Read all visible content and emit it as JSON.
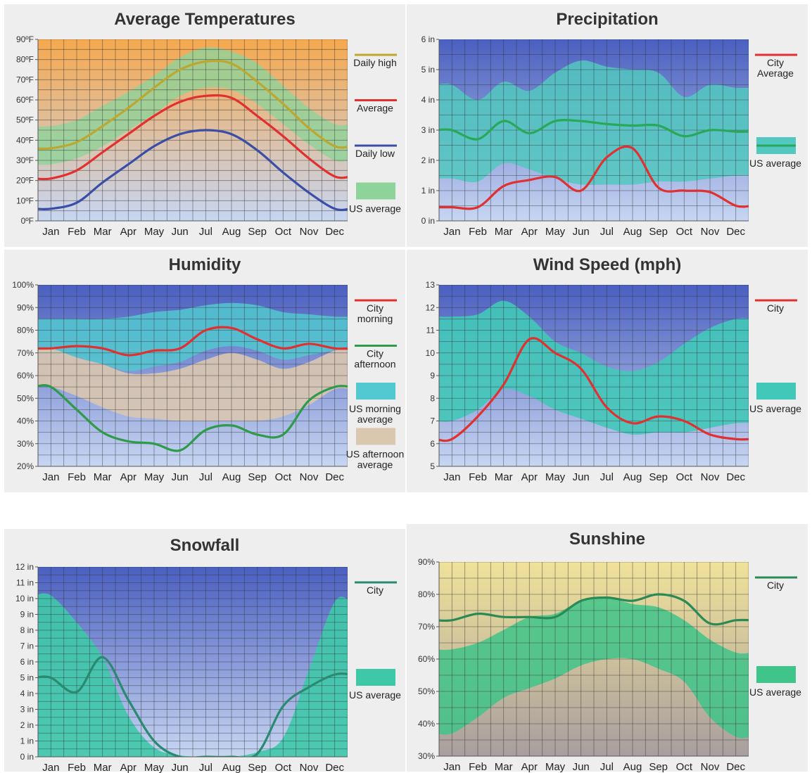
{
  "chart_data": [
    {
      "id": "temps",
      "type": "line",
      "title": "Average Temperatures",
      "categories": [
        "Jan",
        "Feb",
        "Mar",
        "Apr",
        "May",
        "Jun",
        "Jul",
        "Aug",
        "Sep",
        "Oct",
        "Nov",
        "Dec"
      ],
      "y_ticks": [
        "0ºF",
        "10ºF",
        "20ºF",
        "30ºF",
        "40ºF",
        "50ºF",
        "60ºF",
        "70ºF",
        "80ºF",
        "90ºF"
      ],
      "ylim": [
        0,
        90
      ],
      "background": {
        "top": "#f6a94e",
        "bottom": "#c7d6f2"
      },
      "bands": [
        {
          "name": "US average",
          "color": "#8ed39a",
          "opacity": 0.8,
          "upper": [
            47,
            50,
            57,
            64,
            72,
            81,
            86,
            84,
            78,
            67,
            56,
            48
          ],
          "lower": [
            28,
            31,
            37,
            45,
            53,
            62,
            66,
            65,
            58,
            48,
            38,
            30
          ]
        }
      ],
      "series": [
        {
          "name": "Daily high",
          "color": "#bda730",
          "values": [
            36,
            39,
            47,
            56,
            66,
            75,
            79,
            78,
            69,
            58,
            46,
            37
          ]
        },
        {
          "name": "Average",
          "color": "#e03030",
          "values": [
            21,
            25,
            34,
            43,
            52,
            59,
            62,
            61,
            52,
            42,
            31,
            22
          ]
        },
        {
          "name": "Daily low",
          "color": "#3a4ea8",
          "values": [
            6,
            9,
            19,
            28,
            37,
            43,
            45,
            43,
            35,
            24,
            14,
            6
          ]
        }
      ]
    },
    {
      "id": "precip",
      "type": "line",
      "title": "Precipitation",
      "categories": [
        "Jan",
        "Feb",
        "Mar",
        "Apr",
        "May",
        "Jun",
        "Jul",
        "Aug",
        "Sep",
        "Oct",
        "Nov",
        "Dec"
      ],
      "y_ticks": [
        "0 in",
        "1 in",
        "2 in",
        "3 in",
        "4 in",
        "5 in",
        "6 in"
      ],
      "ylim": [
        0,
        6
      ],
      "background": {
        "top": "#4a5fc0",
        "bottom": "#c7d6f2"
      },
      "bands": [
        {
          "name": "US average",
          "color": "#52c8c0",
          "opacity": 0.85,
          "upper": [
            4.5,
            4.0,
            4.6,
            4.3,
            4.9,
            5.3,
            5.1,
            5.0,
            4.9,
            4.1,
            4.5,
            4.4
          ],
          "lower": [
            1.4,
            1.3,
            1.9,
            1.7,
            1.4,
            1.2,
            1.2,
            1.2,
            1.3,
            1.3,
            1.4,
            1.5
          ]
        }
      ],
      "series": [
        {
          "name": "City Average",
          "color": "#e03030",
          "values": [
            0.45,
            0.45,
            1.15,
            1.35,
            1.45,
            1.0,
            2.1,
            2.4,
            1.1,
            1.0,
            0.95,
            0.5
          ]
        },
        {
          "name": "US average",
          "color": "#2aa85a",
          "values": [
            3.0,
            2.7,
            3.3,
            2.9,
            3.3,
            3.3,
            3.2,
            3.15,
            3.15,
            2.8,
            3.0,
            2.95
          ]
        }
      ]
    },
    {
      "id": "humidity",
      "type": "line",
      "title": "Humidity",
      "categories": [
        "Jan",
        "Feb",
        "Mar",
        "Apr",
        "May",
        "Jun",
        "Jul",
        "Aug",
        "Sep",
        "Oct",
        "Nov",
        "Dec"
      ],
      "y_ticks": [
        "20%",
        "30%",
        "40%",
        "50%",
        "60%",
        "70%",
        "80%",
        "90%",
        "100%"
      ],
      "ylim": [
        20,
        100
      ],
      "background": {
        "top": "#4a5fc0",
        "bottom": "#c7d6f2"
      },
      "bands": [
        {
          "name": "US morning average",
          "color": "#52c8d0",
          "opacity": 0.85,
          "upper": [
            85,
            85,
            85,
            86,
            88,
            89,
            91,
            92,
            91,
            88,
            87,
            86
          ],
          "lower": [
            70,
            68,
            65,
            62,
            64,
            66,
            71,
            73,
            71,
            67,
            69,
            71
          ]
        },
        {
          "name": "US afternoon average",
          "color": "#d9c7b0",
          "opacity": 0.9,
          "upper": [
            72,
            68,
            65,
            61,
            61,
            63,
            67,
            70,
            67,
            63,
            66,
            71
          ],
          "lower": [
            55,
            51,
            46,
            42,
            41,
            40,
            40,
            40,
            40,
            42,
            47,
            54
          ]
        }
      ],
      "series": [
        {
          "name": "City morning",
          "color": "#e03030",
          "values": [
            72,
            73,
            72,
            69,
            71,
            72,
            80,
            81,
            76,
            72,
            74,
            72
          ]
        },
        {
          "name": "City afternoon",
          "color": "#2e9a4a",
          "values": [
            55,
            45,
            35,
            31,
            30,
            27,
            36,
            38,
            34,
            34,
            49,
            55
          ]
        }
      ]
    },
    {
      "id": "wind",
      "type": "line",
      "title": "Wind Speed (mph)",
      "categories": [
        "Jan",
        "Feb",
        "Mar",
        "Apr",
        "May",
        "Jun",
        "Jul",
        "Aug",
        "Sep",
        "Oct",
        "Nov",
        "Dec"
      ],
      "y_ticks": [
        "5",
        "6",
        "7",
        "8",
        "9",
        "10",
        "11",
        "12",
        "13"
      ],
      "ylim": [
        5,
        13
      ],
      "background": {
        "top": "#4a5fc0",
        "bottom": "#c7d6f2"
      },
      "bands": [
        {
          "name": "US average",
          "color": "#42c8b8",
          "opacity": 0.9,
          "upper": [
            11.6,
            11.7,
            12.3,
            11.6,
            10.5,
            10.0,
            9.4,
            9.2,
            9.6,
            10.4,
            11.1,
            11.5
          ],
          "lower": [
            7.0,
            7.5,
            8.4,
            8.1,
            7.5,
            7.1,
            6.7,
            6.4,
            6.5,
            6.5,
            6.7,
            6.9
          ]
        }
      ],
      "series": [
        {
          "name": "City",
          "color": "#e03030",
          "values": [
            6.2,
            7.2,
            8.6,
            10.6,
            10.0,
            9.3,
            7.6,
            6.9,
            7.2,
            7.0,
            6.4,
            6.2
          ]
        }
      ]
    },
    {
      "id": "snow",
      "type": "line",
      "title": "Snowfall",
      "categories": [
        "Jan",
        "Feb",
        "Mar",
        "Apr",
        "May",
        "Jun",
        "Jul",
        "Aug",
        "Sep",
        "Oct",
        "Nov",
        "Dec"
      ],
      "y_ticks": [
        "0 in",
        "1 in",
        "2 in",
        "3 in",
        "4 in",
        "5 in",
        "6 in",
        "7 in",
        "8 in",
        "9 in",
        "10 in",
        "11 in",
        "12 in"
      ],
      "ylim": [
        0,
        12
      ],
      "background": {
        "top": "#4a5fc0",
        "bottom": "#c7d6f2"
      },
      "bands": [
        {
          "name": "US average",
          "color": "#3ec8a8",
          "opacity": 0.9,
          "upper": [
            10.2,
            8.5,
            6.3,
            2.6,
            0.6,
            0.1,
            0,
            0,
            0.3,
            1.2,
            5.5,
            9.8
          ],
          "lower": [
            0,
            0,
            0,
            0,
            0,
            0,
            0,
            0,
            0,
            0,
            0,
            0
          ]
        }
      ],
      "series": [
        {
          "name": "City",
          "color": "#2a8a70",
          "values": [
            5.0,
            4.1,
            6.3,
            3.6,
            1.0,
            0,
            0,
            0,
            0.2,
            3.2,
            4.4,
            5.2
          ]
        }
      ]
    },
    {
      "id": "sun",
      "type": "line",
      "title": "Sunshine",
      "categories": [
        "Jan",
        "Feb",
        "Mar",
        "Apr",
        "May",
        "Jun",
        "Jul",
        "Aug",
        "Sep",
        "Oct",
        "Nov",
        "Dec"
      ],
      "y_ticks": [
        "30%",
        "40%",
        "50%",
        "60%",
        "70%",
        "80%",
        "90%"
      ],
      "ylim": [
        30,
        90
      ],
      "background": {
        "top": "#f0e29a",
        "bottom": "#a89e9e"
      },
      "bands": [
        {
          "name": "US average",
          "color": "#3fc48a",
          "opacity": 0.85,
          "upper": [
            63,
            65,
            69,
            73,
            74,
            78,
            79,
            77,
            76,
            72,
            66,
            62
          ],
          "lower": [
            37,
            42,
            48,
            51,
            54,
            58,
            60,
            60,
            57,
            53,
            42,
            36
          ]
        }
      ],
      "series": [
        {
          "name": "City",
          "color": "#2a8a55",
          "values": [
            72,
            74,
            73,
            73,
            73,
            78,
            79,
            78,
            80,
            78,
            71,
            72
          ]
        }
      ]
    }
  ],
  "legends": [
    {
      "chart": "temps",
      "items": [
        {
          "type": "line",
          "color": "#bda730",
          "lines": [
            "Daily high"
          ]
        },
        {
          "type": "line",
          "color": "#e03030",
          "lines": [
            "Average"
          ]
        },
        {
          "type": "line",
          "color": "#3a4ea8",
          "lines": [
            "Daily low"
          ]
        },
        {
          "type": "box",
          "color": "#8ed39a",
          "lines": [
            "US average"
          ]
        }
      ]
    },
    {
      "chart": "precip",
      "items": [
        {
          "type": "line",
          "color": "#e03030",
          "lines": [
            "City",
            "Average"
          ]
        },
        {
          "type": "box",
          "color": "#52c8c0",
          "line_color": "#2aa85a",
          "lines": [
            "US average"
          ]
        }
      ]
    },
    {
      "chart": "humidity",
      "items": [
        {
          "type": "line",
          "color": "#e03030",
          "lines": [
            "City",
            "morning"
          ]
        },
        {
          "type": "line",
          "color": "#2e9a4a",
          "lines": [
            "City",
            "afternoon"
          ]
        },
        {
          "type": "box",
          "color": "#52c8d0",
          "lines": [
            "US morning",
            "average"
          ]
        },
        {
          "type": "box",
          "color": "#d9c7b0",
          "lines": [
            "US afternoon",
            "average"
          ]
        }
      ]
    },
    {
      "chart": "wind",
      "items": [
        {
          "type": "line",
          "color": "#e03030",
          "lines": [
            "City"
          ]
        },
        {
          "type": "box",
          "color": "#42c8b8",
          "lines": [
            "US average"
          ]
        }
      ]
    },
    {
      "chart": "snow",
      "items": [
        {
          "type": "line",
          "color": "#2a8a70",
          "lines": [
            "City"
          ]
        },
        {
          "type": "box",
          "color": "#3ec8a8",
          "lines": [
            "US average"
          ]
        }
      ]
    },
    {
      "chart": "sun",
      "items": [
        {
          "type": "line",
          "color": "#2a8a55",
          "lines": [
            "City"
          ]
        },
        {
          "type": "box",
          "color": "#3fc48a",
          "lines": [
            "US average"
          ]
        }
      ]
    }
  ]
}
